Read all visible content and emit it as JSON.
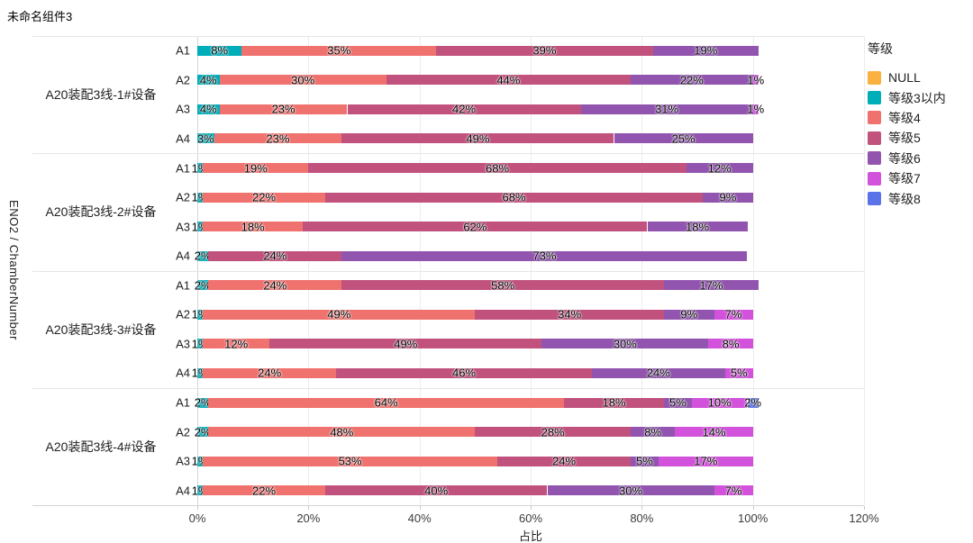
{
  "title": "未命名组件3",
  "chart_data": {
    "type": "bar",
    "orientation": "horizontal",
    "stacked": true,
    "value_unit": "%",
    "xlabel": "占比",
    "ylabel": "ENO2 / ChamberNumber",
    "xlim": [
      0,
      120
    ],
    "x_ticks": [
      "0%",
      "20%",
      "40%",
      "60%",
      "80%",
      "100%",
      "120%"
    ],
    "grid": true,
    "legend": {
      "title": "等级",
      "position": "right",
      "entries": [
        {
          "name": "NULL",
          "color": "#FBB13F"
        },
        {
          "name": "等级3以内",
          "color": "#00AEB9"
        },
        {
          "name": "等级4",
          "color": "#F0726F"
        },
        {
          "name": "等级5",
          "color": "#C1527D"
        },
        {
          "name": "等级6",
          "color": "#9255AF"
        },
        {
          "name": "等级7",
          "color": "#D352DC"
        },
        {
          "name": "等级8",
          "color": "#5B73E8"
        }
      ]
    },
    "groups": [
      {
        "label": "A20装配3线-1#设备",
        "rows": [
          {
            "label": "A1",
            "segments": [
              {
                "series": "等级3以内",
                "value": 8
              },
              {
                "series": "等级4",
                "value": 35
              },
              {
                "series": "等级5",
                "value": 39
              },
              {
                "series": "等级6",
                "value": 19
              }
            ]
          },
          {
            "label": "A2",
            "segments": [
              {
                "series": "等级3以内",
                "value": 4
              },
              {
                "series": "等级4",
                "value": 30
              },
              {
                "series": "等级5",
                "value": 44
              },
              {
                "series": "等级6",
                "value": 22
              },
              {
                "series": "等级7",
                "value": 1
              }
            ]
          },
          {
            "label": "A3",
            "segments": [
              {
                "series": "等级3以内",
                "value": 4
              },
              {
                "series": "等级4",
                "value": 23
              },
              {
                "series": "等级5",
                "value": 42
              },
              {
                "series": "等级6",
                "value": 31
              },
              {
                "series": "等级7",
                "value": 1
              }
            ]
          },
          {
            "label": "A4",
            "segments": [
              {
                "series": "等级3以内",
                "value": 3
              },
              {
                "series": "等级4",
                "value": 23
              },
              {
                "series": "等级5",
                "value": 49
              },
              {
                "series": "等级6",
                "value": 25
              }
            ]
          }
        ]
      },
      {
        "label": "A20装配3线-2#设备",
        "rows": [
          {
            "label": "A1",
            "segments": [
              {
                "series": "等级3以内",
                "value": 1
              },
              {
                "series": "等级4",
                "value": 19
              },
              {
                "series": "等级5",
                "value": 68
              },
              {
                "series": "等级6",
                "value": 12
              }
            ]
          },
          {
            "label": "A2",
            "segments": [
              {
                "series": "等级3以内",
                "value": 1
              },
              {
                "series": "等级4",
                "value": 22
              },
              {
                "series": "等级5",
                "value": 68
              },
              {
                "series": "等级6",
                "value": 9
              }
            ]
          },
          {
            "label": "A3",
            "segments": [
              {
                "series": "等级3以内",
                "value": 1
              },
              {
                "series": "等级4",
                "value": 18
              },
              {
                "series": "等级5",
                "value": 62
              },
              {
                "series": "等级6",
                "value": 18
              }
            ]
          },
          {
            "label": "A4",
            "segments": [
              {
                "series": "等级3以内",
                "value": 2
              },
              {
                "series": "等级5",
                "value": 24
              },
              {
                "series": "等级6",
                "value": 73
              }
            ]
          }
        ]
      },
      {
        "label": "A20装配3线-3#设备",
        "rows": [
          {
            "label": "A1",
            "segments": [
              {
                "series": "等级3以内",
                "value": 2
              },
              {
                "series": "等级4",
                "value": 24
              },
              {
                "series": "等级5",
                "value": 58
              },
              {
                "series": "等级6",
                "value": 17
              }
            ]
          },
          {
            "label": "A2",
            "segments": [
              {
                "series": "等级3以内",
                "value": 1
              },
              {
                "series": "等级4",
                "value": 49
              },
              {
                "series": "等级5",
                "value": 34
              },
              {
                "series": "等级6",
                "value": 9
              },
              {
                "series": "等级7",
                "value": 7
              }
            ]
          },
          {
            "label": "A3",
            "segments": [
              {
                "series": "等级3以内",
                "value": 1
              },
              {
                "series": "等级4",
                "value": 12
              },
              {
                "series": "等级5",
                "value": 49
              },
              {
                "series": "等级6",
                "value": 30
              },
              {
                "series": "等级7",
                "value": 8
              }
            ]
          },
          {
            "label": "A4",
            "segments": [
              {
                "series": "等级3以内",
                "value": 1
              },
              {
                "series": "等级4",
                "value": 24
              },
              {
                "series": "等级5",
                "value": 46
              },
              {
                "series": "等级6",
                "value": 24
              },
              {
                "series": "等级7",
                "value": 5
              }
            ]
          }
        ]
      },
      {
        "label": "A20装配3线-4#设备",
        "rows": [
          {
            "label": "A1",
            "segments": [
              {
                "series": "等级3以内",
                "value": 2
              },
              {
                "series": "等级4",
                "value": 64
              },
              {
                "series": "等级5",
                "value": 18
              },
              {
                "series": "等级6",
                "value": 5
              },
              {
                "series": "等级7",
                "value": 10
              },
              {
                "series": "等级8",
                "value": 2
              }
            ]
          },
          {
            "label": "A2",
            "segments": [
              {
                "series": "等级3以内",
                "value": 2
              },
              {
                "series": "等级4",
                "value": 48
              },
              {
                "series": "等级5",
                "value": 28
              },
              {
                "series": "等级6",
                "value": 8
              },
              {
                "series": "等级7",
                "value": 14
              }
            ]
          },
          {
            "label": "A3",
            "segments": [
              {
                "series": "等级3以内",
                "value": 1
              },
              {
                "series": "等级4",
                "value": 53
              },
              {
                "series": "等级5",
                "value": 24
              },
              {
                "series": "等级6",
                "value": 5
              },
              {
                "series": "等级7",
                "value": 17
              }
            ]
          },
          {
            "label": "A4",
            "segments": [
              {
                "series": "等级3以内",
                "value": 1
              },
              {
                "series": "等级4",
                "value": 22
              },
              {
                "series": "等级5",
                "value": 40
              },
              {
                "series": "等级6",
                "value": 30
              },
              {
                "series": "等级7",
                "value": 7
              }
            ]
          }
        ]
      }
    ]
  }
}
